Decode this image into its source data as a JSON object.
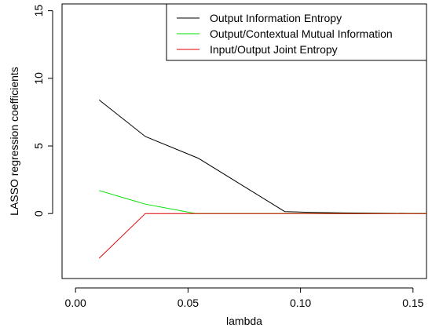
{
  "chart_data": {
    "type": "line",
    "title": "",
    "xlabel": "lambda",
    "ylabel": "LASSO regression coefficients",
    "xlim": [
      -0.006,
      0.156
    ],
    "ylim": [
      -4.8,
      15.5
    ],
    "x_ticks": [
      0.0,
      0.05,
      0.1,
      0.15
    ],
    "x_tick_labels": [
      "0.00",
      "0.05",
      "0.10",
      "0.15"
    ],
    "y_ticks": [
      0,
      5,
      10,
      15
    ],
    "y_tick_labels": [
      "0",
      "5",
      "10",
      "15"
    ],
    "grid": false,
    "legend_position": "top-right",
    "series": [
      {
        "name": "Output Information Entropy",
        "color": "#000000",
        "x": [
          0.0105,
          0.031,
          0.0545,
          0.093,
          0.102,
          0.119,
          0.156
        ],
        "y": [
          8.4,
          5.7,
          4.1,
          0.15,
          0.1,
          0.05,
          0.0
        ]
      },
      {
        "name": "Output/Contextual Mutual Information",
        "color": "#00e000",
        "x": [
          0.0105,
          0.031,
          0.0535,
          0.156
        ],
        "y": [
          1.7,
          0.7,
          0.0,
          0.0
        ]
      },
      {
        "name": "Input/Output Joint Entropy",
        "color": "#e00000",
        "x": [
          0.0105,
          0.031,
          0.156
        ],
        "y": [
          -3.3,
          0.0,
          0.0
        ]
      }
    ]
  }
}
